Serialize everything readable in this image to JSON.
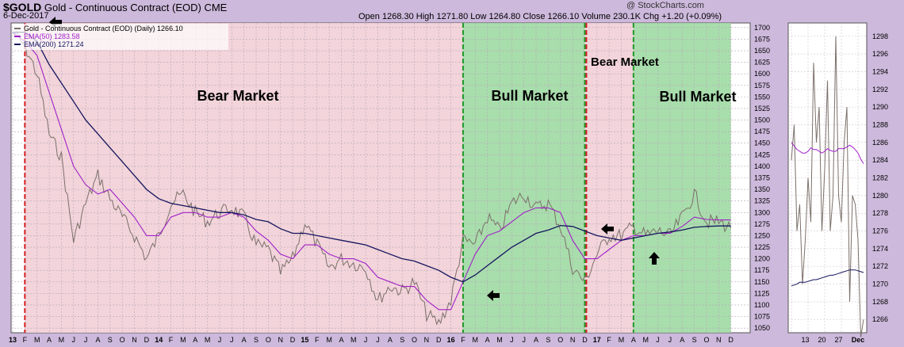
{
  "header": {
    "symbol": "$GOLD",
    "name": "Gold - Continuous Contract (EOD)",
    "exchange": "CME",
    "date": "6-Dec-2017",
    "brand": "@ StockCharts.com",
    "quote": "Open 1268.30  High 1271.80  Low 1264.80  Close 1266.10  Volume 230.1K  Chg +1.20 (+0.09%)"
  },
  "legend": {
    "price": "Gold - Continuous Contract (EOD) (Daily) 1266.10",
    "ema50": "EMA(50) 1283.58",
    "ema200": "EMA(200) 1271.24"
  },
  "colors": {
    "price": "#7b7069",
    "ema50": "#a020c8",
    "ema200": "#15155e",
    "bear": "#f1cfd6",
    "bull": "#9fd9a3",
    "bear_line": "#d42020",
    "bull_line": "#1e9a2a"
  },
  "chart_data": [
    {
      "type": "line",
      "title": "Gold - Continuous Contract (EOD)",
      "y_axis": "right",
      "ylim": [
        1040,
        1710
      ],
      "yticks": [
        1050,
        1075,
        1100,
        1125,
        1150,
        1175,
        1200,
        1225,
        1250,
        1275,
        1300,
        1325,
        1350,
        1375,
        1400,
        1425,
        1450,
        1475,
        1500,
        1525,
        1550,
        1575,
        1600,
        1625,
        1650,
        1675,
        1700
      ],
      "x_labels": [
        "13",
        "F",
        "M",
        "A",
        "M",
        "J",
        "J",
        "A",
        "S",
        "O",
        "N",
        "D",
        "14",
        "F",
        "M",
        "A",
        "M",
        "J",
        "J",
        "A",
        "S",
        "O",
        "N",
        "D",
        "15",
        "F",
        "M",
        "A",
        "M",
        "J",
        "J",
        "A",
        "S",
        "O",
        "N",
        "D",
        "16",
        "F",
        "M",
        "A",
        "M",
        "J",
        "J",
        "A",
        "S",
        "O",
        "N",
        "D",
        "17",
        "F",
        "M",
        "A",
        "M",
        "J",
        "J",
        "A",
        "S",
        "O",
        "N",
        "D"
      ],
      "regions": [
        {
          "label": "Bear Market",
          "type": "bear",
          "from": "2013-02",
          "to": "2016-02"
        },
        {
          "label": "Bull Market",
          "type": "bull",
          "from": "2016-02",
          "to": "2016-12"
        },
        {
          "label": "Bear Market",
          "type": "bear",
          "from": "2016-12",
          "to": "2017-04"
        },
        {
          "label": "Bull Market",
          "type": "bull",
          "from": "2017-04",
          "to": "2017-12"
        }
      ],
      "series": [
        {
          "name": "Gold - Continuous Contract (EOD) (Daily)",
          "key": "price",
          "x": [
            "2013-01",
            "2013-02",
            "2013-03",
            "2013-04",
            "2013-05",
            "2013-06",
            "2013-07",
            "2013-08",
            "2013-09",
            "2013-10",
            "2013-11",
            "2013-12",
            "2014-01",
            "2014-02",
            "2014-03",
            "2014-04",
            "2014-05",
            "2014-06",
            "2014-07",
            "2014-08",
            "2014-09",
            "2014-10",
            "2014-11",
            "2014-12",
            "2015-01",
            "2015-02",
            "2015-03",
            "2015-04",
            "2015-05",
            "2015-06",
            "2015-07",
            "2015-08",
            "2015-09",
            "2015-10",
            "2015-11",
            "2015-12",
            "2016-01",
            "2016-02",
            "2016-03",
            "2016-04",
            "2016-05",
            "2016-06",
            "2016-07",
            "2016-08",
            "2016-09",
            "2016-10",
            "2016-11",
            "2016-12",
            "2017-01",
            "2017-02",
            "2017-03",
            "2017-04",
            "2017-05",
            "2017-06",
            "2017-07",
            "2017-08",
            "2017-09",
            "2017-10",
            "2017-11",
            "2017-12"
          ],
          "values": [
            1690,
            1660,
            1600,
            1470,
            1420,
            1240,
            1320,
            1380,
            1330,
            1290,
            1250,
            1200,
            1250,
            1320,
            1340,
            1300,
            1280,
            1300,
            1310,
            1290,
            1230,
            1220,
            1170,
            1200,
            1280,
            1230,
            1180,
            1200,
            1190,
            1180,
            1110,
            1140,
            1130,
            1150,
            1080,
            1060,
            1110,
            1240,
            1230,
            1290,
            1260,
            1320,
            1340,
            1310,
            1320,
            1270,
            1180,
            1150,
            1210,
            1250,
            1250,
            1270,
            1250,
            1260,
            1250,
            1290,
            1340,
            1280,
            1280,
            1266
          ]
        },
        {
          "name": "EMA(50)",
          "key": "ema50",
          "x": [
            "2013-01",
            "2013-02",
            "2013-03",
            "2013-04",
            "2013-05",
            "2013-06",
            "2013-07",
            "2013-08",
            "2013-09",
            "2013-10",
            "2013-11",
            "2013-12",
            "2014-01",
            "2014-02",
            "2014-03",
            "2014-04",
            "2014-05",
            "2014-06",
            "2014-07",
            "2014-08",
            "2014-09",
            "2014-10",
            "2014-11",
            "2014-12",
            "2015-01",
            "2015-02",
            "2015-03",
            "2015-04",
            "2015-05",
            "2015-06",
            "2015-07",
            "2015-08",
            "2015-09",
            "2015-10",
            "2015-11",
            "2015-12",
            "2016-01",
            "2016-02",
            "2016-03",
            "2016-04",
            "2016-05",
            "2016-06",
            "2016-07",
            "2016-08",
            "2016-09",
            "2016-10",
            "2016-11",
            "2016-12",
            "2017-01",
            "2017-02",
            "2017-03",
            "2017-04",
            "2017-05",
            "2017-06",
            "2017-07",
            "2017-08",
            "2017-09",
            "2017-10",
            "2017-11",
            "2017-12"
          ],
          "values": [
            1690,
            1670,
            1640,
            1560,
            1480,
            1400,
            1360,
            1340,
            1350,
            1320,
            1290,
            1250,
            1250,
            1290,
            1300,
            1300,
            1290,
            1290,
            1300,
            1290,
            1260,
            1240,
            1210,
            1200,
            1230,
            1230,
            1210,
            1200,
            1200,
            1190,
            1160,
            1150,
            1140,
            1140,
            1110,
            1090,
            1090,
            1150,
            1210,
            1250,
            1260,
            1280,
            1300,
            1310,
            1310,
            1300,
            1240,
            1200,
            1200,
            1220,
            1240,
            1250,
            1250,
            1255,
            1255,
            1270,
            1290,
            1285,
            1284,
            1284
          ]
        },
        {
          "name": "EMA(200)",
          "key": "ema200",
          "x": [
            "2013-01",
            "2013-02",
            "2013-03",
            "2013-04",
            "2013-05",
            "2013-06",
            "2013-07",
            "2013-08",
            "2013-09",
            "2013-10",
            "2013-11",
            "2013-12",
            "2014-01",
            "2014-02",
            "2014-03",
            "2014-04",
            "2014-05",
            "2014-06",
            "2014-07",
            "2014-08",
            "2014-09",
            "2014-10",
            "2014-11",
            "2014-12",
            "2015-01",
            "2015-02",
            "2015-03",
            "2015-04",
            "2015-05",
            "2015-06",
            "2015-07",
            "2015-08",
            "2015-09",
            "2015-10",
            "2015-11",
            "2015-12",
            "2016-01",
            "2016-02",
            "2016-03",
            "2016-04",
            "2016-05",
            "2016-06",
            "2016-07",
            "2016-08",
            "2016-09",
            "2016-10",
            "2016-11",
            "2016-12",
            "2017-01",
            "2017-02",
            "2017-03",
            "2017-04",
            "2017-05",
            "2017-06",
            "2017-07",
            "2017-08",
            "2017-09",
            "2017-10",
            "2017-11",
            "2017-12"
          ],
          "values": [
            1690,
            1690,
            1670,
            1620,
            1580,
            1540,
            1500,
            1470,
            1440,
            1410,
            1380,
            1350,
            1330,
            1320,
            1315,
            1310,
            1305,
            1300,
            1300,
            1295,
            1285,
            1280,
            1265,
            1255,
            1255,
            1250,
            1245,
            1240,
            1235,
            1230,
            1220,
            1210,
            1200,
            1195,
            1185,
            1175,
            1160,
            1150,
            1165,
            1185,
            1205,
            1225,
            1240,
            1255,
            1262,
            1272,
            1270,
            1260,
            1250,
            1245,
            1240,
            1245,
            1250,
            1255,
            1258,
            1262,
            1268,
            1270,
            1271,
            1271
          ]
        }
      ]
    },
    {
      "type": "line",
      "title": "",
      "y_axis": "right",
      "ylim": [
        1264.5,
        1299.5
      ],
      "yticks": [
        1266,
        1268,
        1270,
        1272,
        1274,
        1276,
        1278,
        1280,
        1282,
        1284,
        1286,
        1288,
        1290,
        1292,
        1294,
        1296,
        1298
      ],
      "x_labels": [
        "13",
        "20",
        "27",
        "Dec"
      ],
      "series": [
        {
          "name": "Gold - Continuous Contract (EOD) (Daily)",
          "key": "price",
          "values": [
            1284,
            1288,
            1276,
            1279,
            1270,
            1275,
            1282,
            1277,
            1295,
            1286,
            1290,
            1276,
            1283,
            1293,
            1276,
            1280,
            1298,
            1280,
            1277,
            1286,
            1290,
            1268,
            1280,
            1279,
            1275,
            1264,
            1266
          ]
        },
        {
          "name": "EMA(50)",
          "key": "ema50",
          "values": [
            1286,
            1285.6,
            1285.2,
            1285,
            1284.8,
            1284.8,
            1285,
            1285.4,
            1285.2,
            1285.2,
            1285,
            1284.8,
            1285,
            1285.3,
            1285.1,
            1285,
            1285,
            1285.3,
            1285.3,
            1285.3,
            1285.5,
            1285.7,
            1285.5,
            1285.2,
            1284.8,
            1284.1,
            1283.6
          ]
        },
        {
          "name": "EMA(200)",
          "key": "ema200",
          "values": [
            1269.8,
            1269.9,
            1270,
            1270.2,
            1270.2,
            1270.2,
            1270.3,
            1270.4,
            1270.5,
            1270.5,
            1270.6,
            1270.7,
            1270.8,
            1270.9,
            1271,
            1271,
            1271.1,
            1271.2,
            1271.3,
            1271.4,
            1271.5,
            1271.6,
            1271.6,
            1271.6,
            1271.5,
            1271.4,
            1271.3
          ]
        }
      ]
    }
  ]
}
